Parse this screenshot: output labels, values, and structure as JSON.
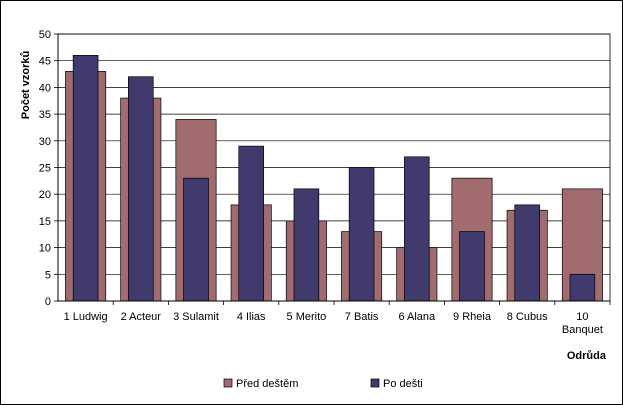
{
  "chart_data": {
    "type": "bar",
    "title": "",
    "xlabel": "Odrůda",
    "ylabel": "Počet vzorků",
    "ylim": [
      0,
      50
    ],
    "yticks": [
      0,
      5,
      10,
      15,
      20,
      25,
      30,
      35,
      40,
      45,
      50
    ],
    "grid": true,
    "legend_position": "bottom",
    "categories": [
      "1 Ludwig",
      "2 Acteur",
      "3 Sulamit",
      "4 Ilias",
      "5 Merito",
      "7 Batis",
      "6 Alana",
      "9 Rheia",
      "8 Cubus",
      "10 Banquet"
    ],
    "series": [
      {
        "name": "Před deštěm",
        "color": "#A06C70",
        "values": [
          43,
          38,
          34,
          18,
          15,
          13,
          10,
          23,
          17,
          21
        ]
      },
      {
        "name": "Po dešti",
        "color": "#403B6C",
        "values": [
          46,
          42,
          23,
          29,
          21,
          25,
          27,
          13,
          18,
          5
        ]
      }
    ]
  }
}
